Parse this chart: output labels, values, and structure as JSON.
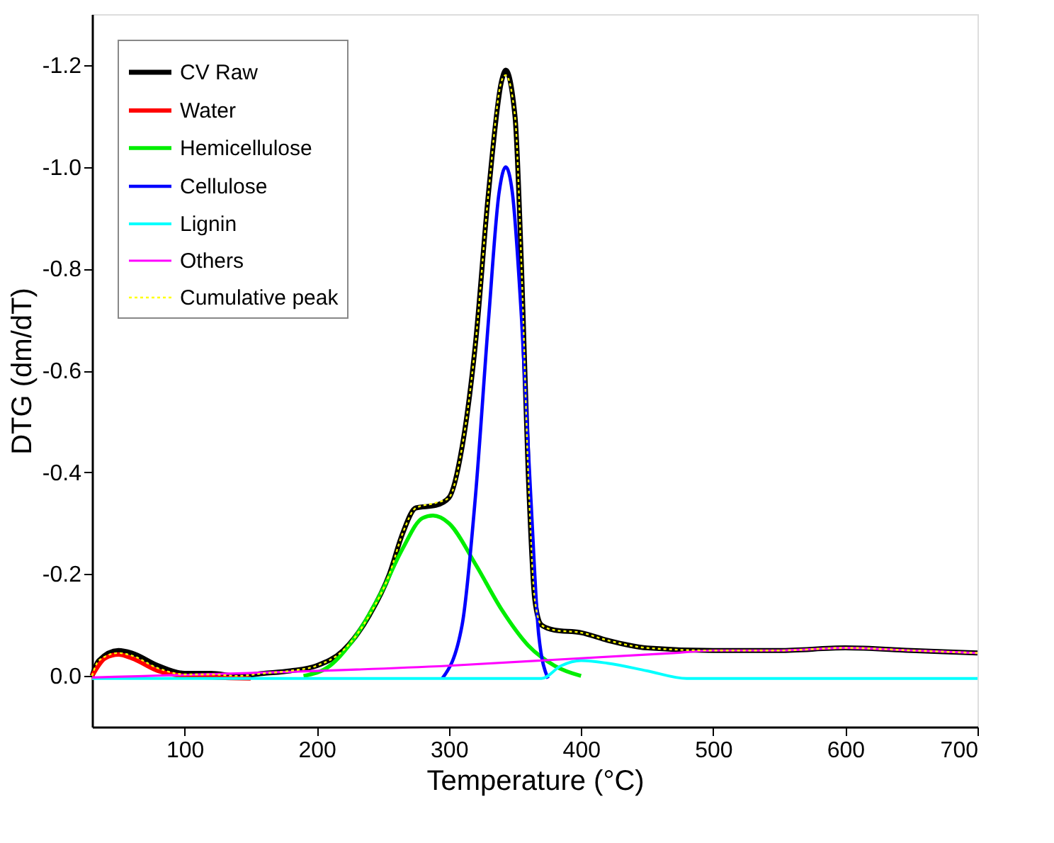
{
  "chart_data": {
    "type": "line",
    "xlabel": "Temperature (°C)",
    "ylabel": "DTG (dm/dT)",
    "xlim": [
      30,
      700
    ],
    "xticks": [
      100,
      200,
      300,
      400,
      500,
      600,
      700
    ],
    "ylim": [
      0.1,
      -1.3
    ],
    "yticks": [
      {
        "value": -1.2,
        "label": "-1.2"
      },
      {
        "value": -1.0,
        "label": "-1.0"
      },
      {
        "value": -0.8,
        "label": "-0.8"
      },
      {
        "value": -0.6,
        "label": "-0.6"
      },
      {
        "value": -0.4,
        "label": "-0.4"
      },
      {
        "value": -0.2,
        "label": "-0.2"
      },
      {
        "value": 0,
        "label": "0.0"
      }
    ],
    "grid": false,
    "legend": "top left",
    "marker": "none",
    "series": [
      {
        "name": "CV Raw",
        "color": "#000000",
        "line_style": "solid",
        "x": [
          30,
          35,
          50,
          60,
          80,
          100,
          120,
          140,
          160,
          180,
          200,
          220,
          240,
          255,
          265,
          275,
          290,
          300,
          310,
          320,
          330,
          340,
          343,
          350,
          355,
          360,
          365,
          370,
          380,
          400,
          420,
          450,
          500,
          550,
          600,
          650,
          700
        ],
        "values": [
          0.0,
          -0.03,
          -0.05,
          -0.045,
          -0.02,
          -0.005,
          -0.005,
          0.0,
          -0.005,
          -0.01,
          -0.02,
          -0.05,
          -0.12,
          -0.2,
          -0.28,
          -0.33,
          -0.335,
          -0.35,
          -0.45,
          -0.65,
          -0.95,
          -1.17,
          -1.19,
          -1.1,
          -0.8,
          -0.4,
          -0.15,
          -0.1,
          -0.09,
          -0.085,
          -0.07,
          -0.055,
          -0.05,
          -0.05,
          -0.055,
          -0.05,
          -0.045
        ]
      },
      {
        "name": "Water",
        "color": "#ff0000",
        "line_style": "solid",
        "x": [
          30,
          40,
          50,
          60,
          80,
          100,
          150
        ],
        "values": [
          0.0,
          -0.035,
          -0.042,
          -0.035,
          -0.01,
          0.0,
          0.005
        ]
      },
      {
        "name": "Hemicellulose",
        "color": "#00ee00",
        "line_style": "solid",
        "x": [
          190,
          210,
          230,
          250,
          265,
          280,
          288,
          300,
          320,
          340,
          360,
          380,
          400
        ],
        "values": [
          0.0,
          -0.02,
          -0.08,
          -0.17,
          -0.25,
          -0.31,
          -0.315,
          -0.3,
          -0.22,
          -0.13,
          -0.06,
          -0.02,
          0.0
        ]
      },
      {
        "name": "Cellulose",
        "color": "#0000ff",
        "line_style": "solid",
        "x": [
          295,
          310,
          320,
          330,
          338,
          343,
          348,
          355,
          362,
          368,
          375
        ],
        "values": [
          0.005,
          -0.1,
          -0.35,
          -0.7,
          -0.95,
          -1.0,
          -0.95,
          -0.7,
          -0.35,
          -0.08,
          0.005
        ]
      },
      {
        "name": "Lignin",
        "color": "#00ffff",
        "line_style": "solid",
        "x": [
          30,
          370,
          385,
          400,
          420,
          450,
          480,
          700
        ],
        "values": [
          0.005,
          0.005,
          -0.02,
          -0.03,
          -0.025,
          -0.01,
          0.005,
          0.005
        ]
      },
      {
        "name": "Others",
        "color": "#ff00ff",
        "line_style": "solid",
        "x": [
          30,
          300,
          470,
          500,
          550,
          600,
          650,
          700
        ],
        "values": [
          0.003,
          -0.02,
          -0.045,
          -0.05,
          -0.05,
          -0.055,
          -0.05,
          -0.045
        ]
      },
      {
        "name": "Cumulative peak",
        "color": "#ffff00",
        "line_style": "dotted",
        "x": [
          30,
          35,
          50,
          60,
          80,
          100,
          120,
          140,
          160,
          180,
          200,
          220,
          240,
          255,
          265,
          275,
          290,
          300,
          310,
          320,
          330,
          340,
          343,
          350,
          355,
          360,
          365,
          370,
          380,
          400,
          420,
          450,
          500,
          550,
          600,
          650,
          700
        ],
        "values": [
          0.0,
          -0.03,
          -0.045,
          -0.04,
          -0.015,
          -0.003,
          -0.003,
          0.0,
          -0.005,
          -0.01,
          -0.02,
          -0.05,
          -0.12,
          -0.2,
          -0.28,
          -0.33,
          -0.34,
          -0.35,
          -0.45,
          -0.65,
          -0.95,
          -1.17,
          -1.18,
          -1.1,
          -0.8,
          -0.4,
          -0.15,
          -0.1,
          -0.09,
          -0.085,
          -0.07,
          -0.055,
          -0.05,
          -0.05,
          -0.055,
          -0.05,
          -0.045
        ]
      }
    ]
  }
}
